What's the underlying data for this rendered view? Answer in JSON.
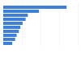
{
  "chart_data": {
    "type": "bar",
    "orientation": "horizontal",
    "categories": [
      null,
      null,
      null,
      null,
      null,
      null,
      null,
      null,
      null,
      null
    ],
    "values": [
      85,
      48,
      33,
      30,
      26,
      23,
      21,
      18,
      16,
      12
    ],
    "color": "#3f7fd6",
    "xlim": [
      0,
      100
    ],
    "xticks": [
      0,
      25,
      50,
      75,
      100
    ],
    "grid": true,
    "tick_labels": false
  }
}
